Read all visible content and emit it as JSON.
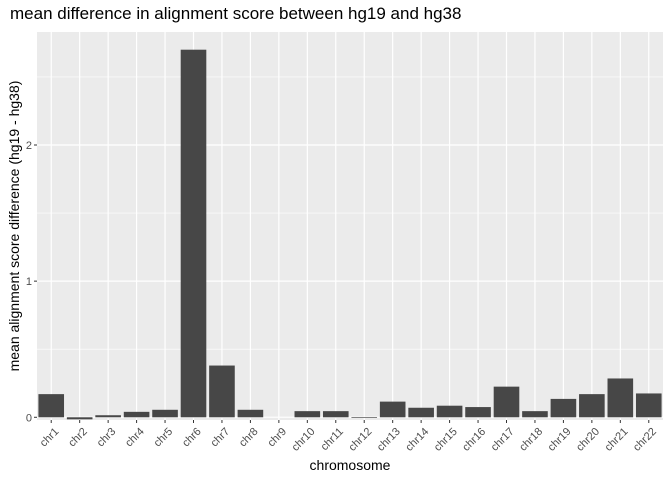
{
  "chart_data": {
    "type": "bar",
    "title": "mean difference in alignment score between hg19 and hg38",
    "xlabel": "chromosome",
    "ylabel": "mean alignment score difference (hg19 - hg38)",
    "categories": [
      "chr1",
      "chr2",
      "chr3",
      "chr4",
      "chr5",
      "chr6",
      "chr7",
      "chr8",
      "chr9",
      "chr10",
      "chr11",
      "chr12",
      "chr13",
      "chr14",
      "chr15",
      "chr16",
      "chr17",
      "chr18",
      "chr19",
      "chr20",
      "chr21",
      "chr22"
    ],
    "values": [
      0.17,
      -0.015,
      0.015,
      0.04,
      0.055,
      2.7,
      0.38,
      0.055,
      0.0,
      0.045,
      0.045,
      -0.005,
      0.115,
      0.07,
      0.085,
      0.075,
      0.225,
      0.045,
      0.135,
      0.17,
      0.285,
      0.175
    ],
    "yticks": [
      0,
      1,
      2
    ],
    "ylim": [
      -0.02,
      2.83
    ],
    "grid": true,
    "colors": {
      "bar": "#474747",
      "panel": "#ebebeb",
      "grid": "#ffffff"
    }
  }
}
